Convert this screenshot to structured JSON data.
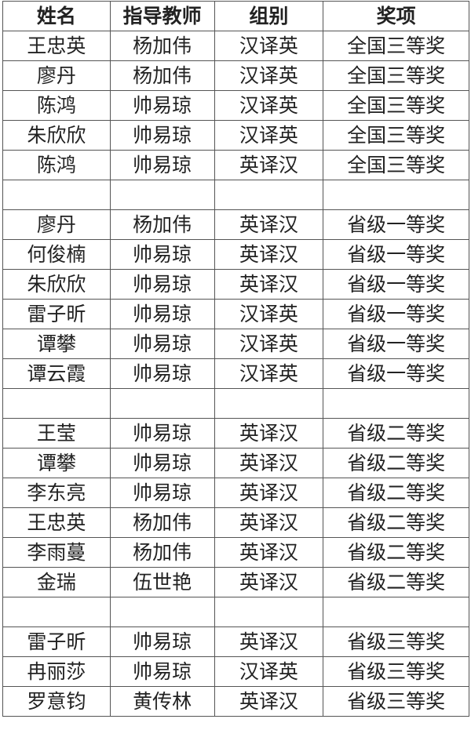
{
  "headers": [
    "姓名",
    "指导教师",
    "组别",
    "奖项"
  ],
  "rows": [
    [
      "王忠英",
      "杨加伟",
      "汉译英",
      "全国三等奖"
    ],
    [
      "廖丹",
      "杨加伟",
      "汉译英",
      "全国三等奖"
    ],
    [
      "陈鸿",
      "帅易琼",
      "汉译英",
      "全国三等奖"
    ],
    [
      "朱欣欣",
      "帅易琼",
      "汉译英",
      "全国三等奖"
    ],
    [
      "陈鸿",
      "帅易琼",
      "英译汉",
      "全国三等奖"
    ],
    [
      "",
      "",
      "",
      ""
    ],
    [
      "廖丹",
      "杨加伟",
      "英译汉",
      "省级一等奖"
    ],
    [
      "何俊楠",
      "帅易琼",
      "英译汉",
      "省级一等奖"
    ],
    [
      "朱欣欣",
      "帅易琼",
      "英译汉",
      "省级一等奖"
    ],
    [
      "雷子昕",
      "帅易琼",
      "汉译英",
      "省级一等奖"
    ],
    [
      "谭攀",
      "帅易琼",
      "汉译英",
      "省级一等奖"
    ],
    [
      "谭云霞",
      "帅易琼",
      "汉译英",
      "省级一等奖"
    ],
    [
      "",
      "",
      "",
      ""
    ],
    [
      "王莹",
      "帅易琼",
      "英译汉",
      "省级二等奖"
    ],
    [
      "谭攀",
      "帅易琼",
      "英译汉",
      "省级二等奖"
    ],
    [
      "李东亮",
      "帅易琼",
      "英译汉",
      "省级二等奖"
    ],
    [
      "王忠英",
      "杨加伟",
      "英译汉",
      "省级二等奖"
    ],
    [
      "李雨蔓",
      "杨加伟",
      "英译汉",
      "省级二等奖"
    ],
    [
      "金瑞",
      "伍世艳",
      "英译汉",
      "省级二等奖"
    ],
    [
      "",
      "",
      "",
      ""
    ],
    [
      "雷子昕",
      "帅易琼",
      "英译汉",
      "省级三等奖"
    ],
    [
      "冉丽莎",
      "帅易琼",
      "汉译英",
      "省级三等奖"
    ],
    [
      "罗意钧",
      "黄传林",
      "英译汉",
      "省级三等奖"
    ]
  ]
}
